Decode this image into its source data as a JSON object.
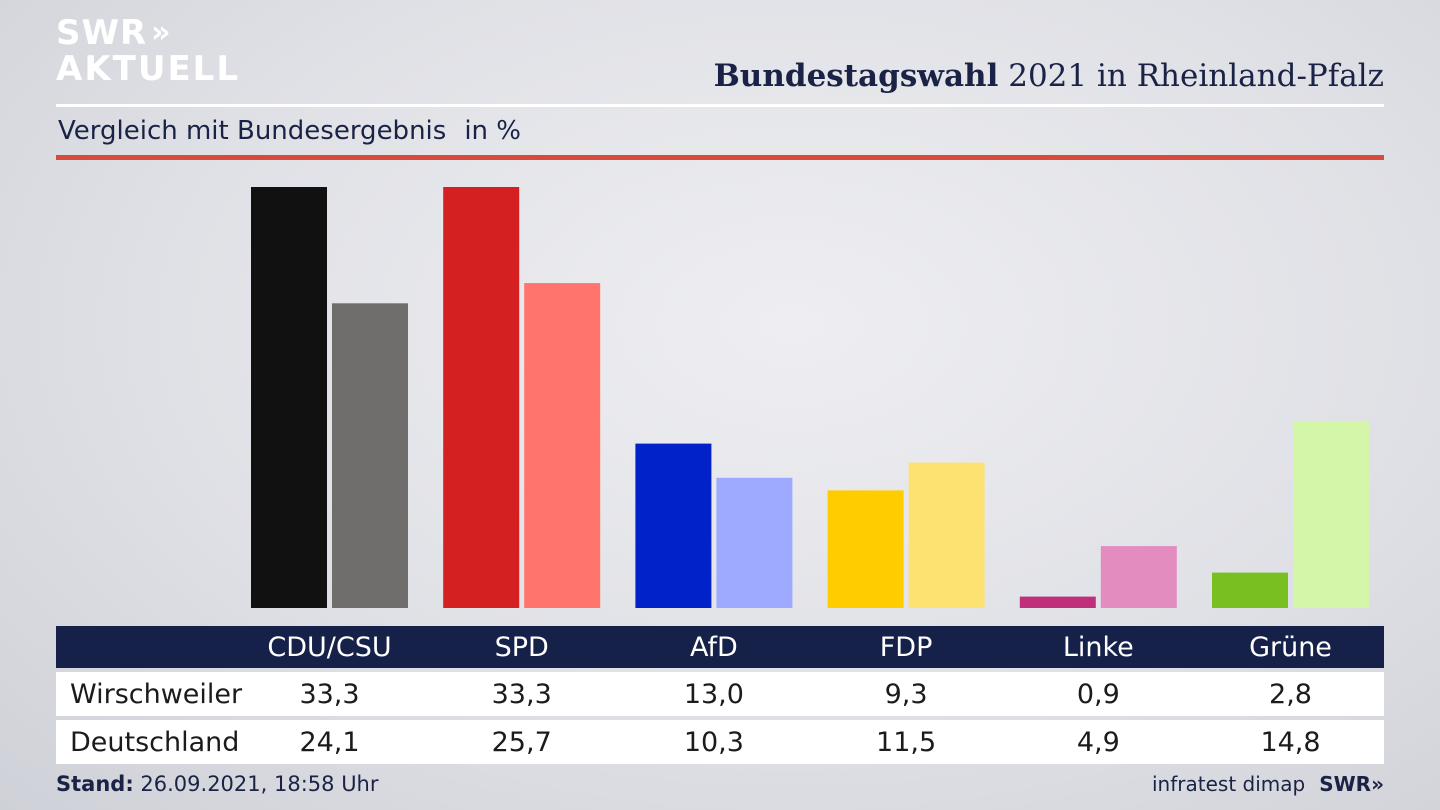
{
  "brand": {
    "line1": "SWR",
    "line1_arrows": "»",
    "line2": "AKTUELL"
  },
  "header": {
    "title_bold": "Bundestagswahl",
    "title_rest": "2021 in Rheinland-Pfalz"
  },
  "subtitle": {
    "text": "Vergleich mit Bundesergebnis",
    "unit": "in %"
  },
  "colors": {
    "local": [
      "#111111",
      "#d42020",
      "#0022c8",
      "#ffcc00",
      "#c0307a",
      "#78c020"
    ],
    "national": [
      "#706e6c",
      "#ff746c",
      "#9eaaff",
      "#fde272",
      "#e28cc0",
      "#d4f6a8"
    ],
    "table_header": "#16214a",
    "accent_rule": "#d84b3c"
  },
  "chart_data": {
    "type": "bar",
    "categories": [
      "CDU/CSU",
      "SPD",
      "AfD",
      "FDP",
      "Linke",
      "Grüne"
    ],
    "series": [
      {
        "name": "Wirschweiler",
        "values": [
          33.3,
          33.3,
          13.0,
          9.3,
          0.9,
          2.8
        ]
      },
      {
        "name": "Deutschland",
        "values": [
          24.1,
          25.7,
          10.3,
          11.5,
          4.9,
          14.8
        ]
      }
    ],
    "ylim": [
      0,
      33.3
    ],
    "grid": false,
    "legend": "none"
  },
  "table": {
    "headers": [
      "CDU/CSU",
      "SPD",
      "AfD",
      "FDP",
      "Linke",
      "Grüne"
    ],
    "rows": [
      {
        "label": "Wirschweiler",
        "values": [
          "33,3",
          "33,3",
          "13,0",
          "9,3",
          "0,9",
          "2,8"
        ]
      },
      {
        "label": "Deutschland",
        "values": [
          "24,1",
          "25,7",
          "10,3",
          "11,5",
          "4,9",
          "14,8"
        ]
      }
    ]
  },
  "footer": {
    "stand_label": "Stand:",
    "stand_value": "26.09.2021, 18:58 Uhr",
    "source": "infratest dimap",
    "brand": "SWR»"
  }
}
